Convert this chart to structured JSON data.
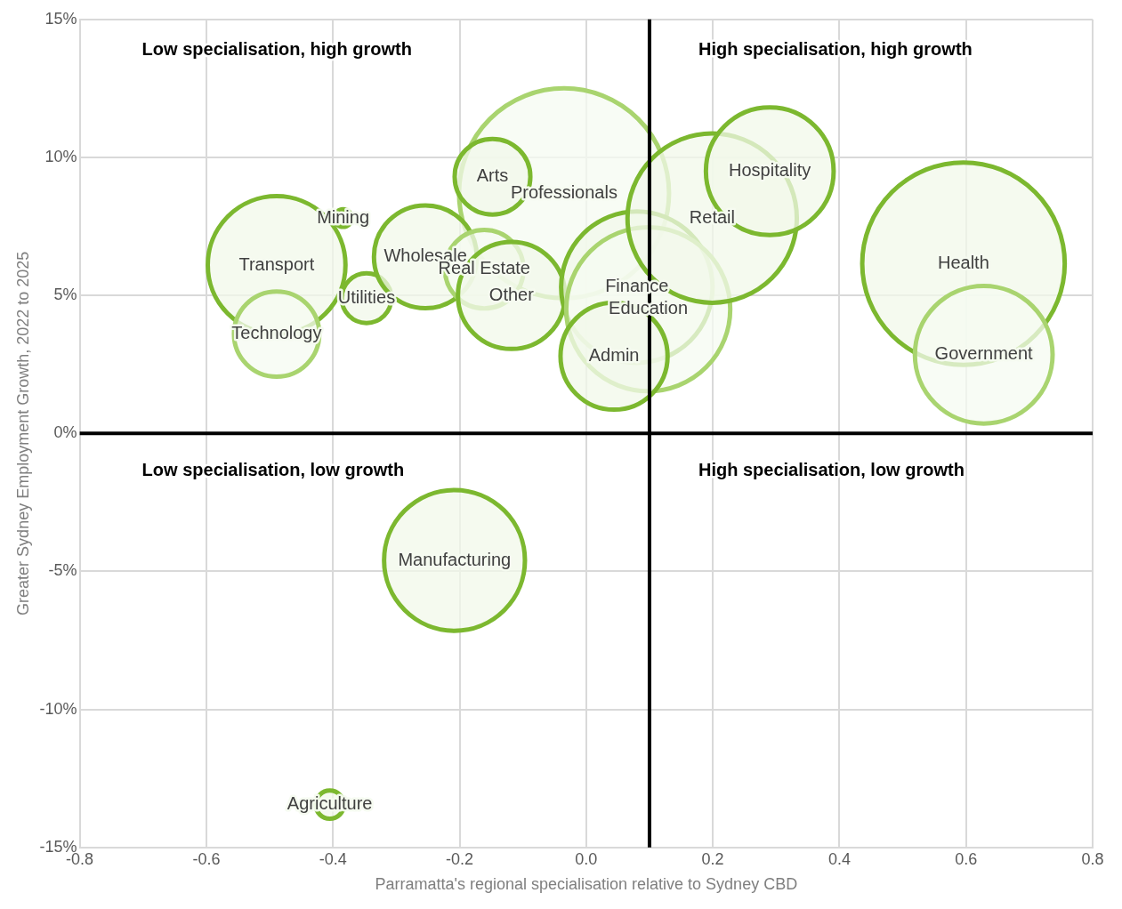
{
  "chart_data": {
    "type": "bubble",
    "xlabel": "Parramatta's regional specialisation relative to Sydney CBD",
    "ylabel": "Greater Sydney Employment Growth, 2022 to 2025",
    "xlim": [
      -0.8,
      0.8
    ],
    "xticks": [
      -0.8,
      -0.6,
      -0.4,
      -0.2,
      {
        "value": 0,
        "label": "0.0"
      },
      0.2,
      0.4,
      0.6,
      0.8
    ],
    "ylim": [
      -15,
      15
    ],
    "yticks": [
      {
        "value": -15,
        "label": "-15%"
      },
      {
        "value": -10,
        "label": "-10%"
      },
      {
        "value": -5,
        "label": "-5%"
      },
      {
        "value": 0,
        "label": "0%"
      },
      {
        "value": 5,
        "label": "5%"
      },
      {
        "value": 10,
        "label": "10%"
      },
      {
        "value": 15,
        "label": "15%"
      }
    ],
    "grid": true,
    "legend": false,
    "x": [
      -0.035,
      -0.148,
      -0.384,
      -0.489,
      -0.489,
      -0.347,
      -0.254,
      -0.161,
      -0.118,
      0.08,
      0.098,
      0.044,
      0.199,
      0.29,
      0.596,
      0.628,
      -0.208,
      -0.405
    ],
    "values": [
      8.7,
      9.3,
      7.8,
      6.1,
      3.6,
      4.9,
      6.4,
      5.95,
      5.0,
      5.3,
      4.5,
      2.8,
      7.8,
      9.5,
      6.15,
      2.85,
      -4.6,
      -13.45
    ],
    "sizes": [
      1,
      0.13,
      0.007,
      0.43,
      0.165,
      0.056,
      0.24,
      0.14,
      0.26,
      0.52,
      0.61,
      0.26,
      0.65,
      0.37,
      0.93,
      0.43,
      0.45,
      0.018
    ],
    "colors": [
      "#a9d46f",
      "#7cb82f",
      "#7cb82f",
      "#7cb82f",
      "#a9d46f",
      "#7cb82f",
      "#7cb82f",
      "#a9d46f",
      "#7cb82f",
      "#7cb82f",
      "#a9d46f",
      "#7cb82f",
      "#7cb82f",
      "#7cb82f",
      "#7cb82f",
      "#a9d46f",
      "#7cb82f",
      "#7cb82f"
    ],
    "ref_lines": [
      {
        "axis": "x",
        "value": 0.1,
        "color": "#000000"
      },
      {
        "axis": "y",
        "value": 0,
        "color": "#000000"
      }
    ],
    "annotations": [
      "Low specialisation, high growth",
      "High specialisation, high growth",
      "Low specialisation, low growth",
      "High specialisation, low growth",
      "Professionals",
      "Arts",
      "Mining",
      "Transport",
      "Technology",
      "Utilities",
      "Wholesale",
      "Real Estate",
      "Other",
      "Finance",
      "Education",
      "Admin",
      "Retail",
      "Hospitality",
      "Health",
      "Government",
      "Manufacturing",
      "Agriculture"
    ]
  }
}
